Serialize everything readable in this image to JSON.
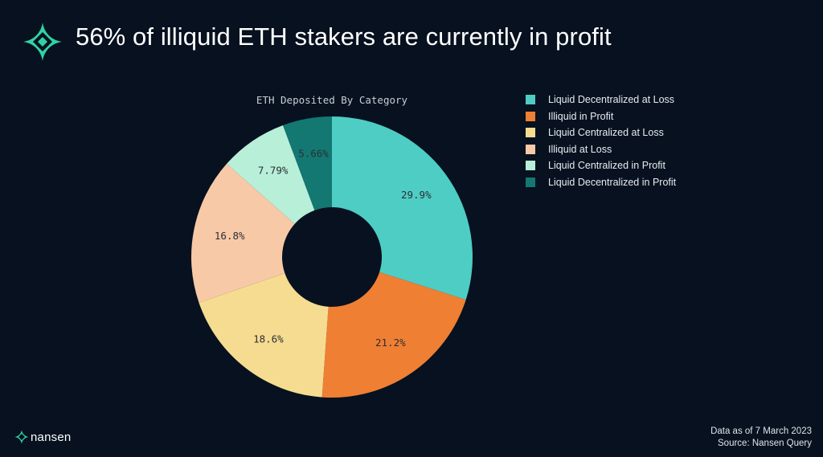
{
  "header": {
    "headline": "56% of illiquid ETH stakers are currently in profit"
  },
  "colors": {
    "background": "#07111f",
    "brand_teal": "#2fd3a4"
  },
  "chart_data": {
    "type": "pie",
    "donut": true,
    "title": "ETH Deposited By Category",
    "legend_position": "right",
    "series": [
      {
        "name": "Liquid Decentralized at Loss",
        "value": 29.9,
        "label": "29.9%",
        "color": "#4ecdc4"
      },
      {
        "name": "Illiquid in Profit",
        "value": 21.2,
        "label": "21.2%",
        "color": "#ef7f33"
      },
      {
        "name": "Liquid Centralized at Loss",
        "value": 18.6,
        "label": "18.6%",
        "color": "#f6dc91"
      },
      {
        "name": "Illiquid at Loss",
        "value": 16.8,
        "label": "16.8%",
        "color": "#f8c9a7"
      },
      {
        "name": "Liquid Centralized in Profit",
        "value": 7.79,
        "label": "7.79%",
        "color": "#b8efd8"
      },
      {
        "name": "Liquid Decentralized in Profit",
        "value": 5.66,
        "label": "5.66%",
        "color": "#137872"
      }
    ]
  },
  "footer": {
    "brand": "nansen",
    "date_note": "Data as of 7 March 2023",
    "source_note": "Source: Nansen Query"
  }
}
